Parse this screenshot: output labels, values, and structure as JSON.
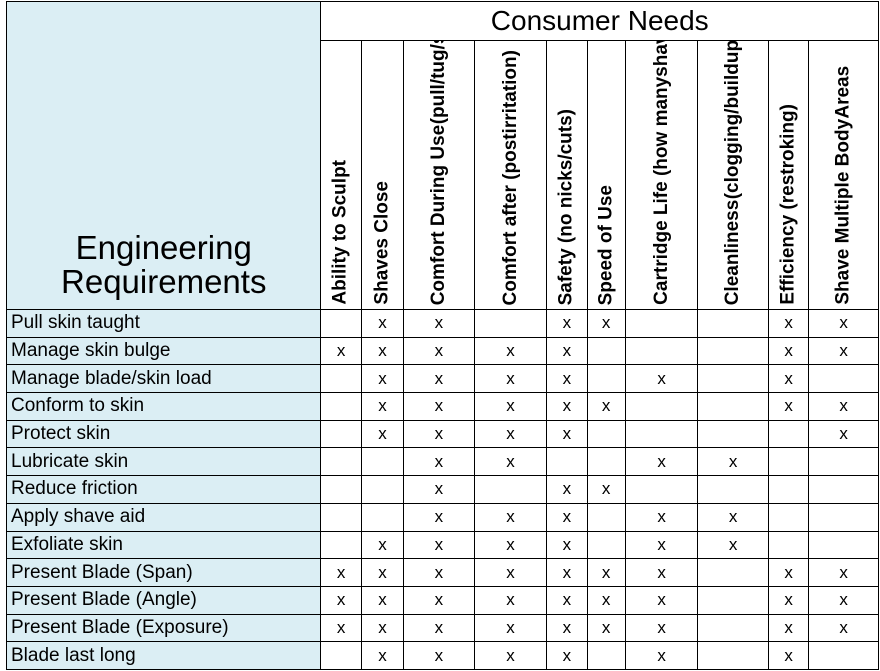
{
  "corner_title_line1": "Engineering",
  "corner_title_line2": "Requirements",
  "header_title": "Consumer Needs",
  "needs": [
    [
      "Ability to Sculpt"
    ],
    [
      "Shaves Close"
    ],
    [
      "Comfort During Use",
      "(pull/tug/scrape)"
    ],
    [
      "Comfort after (post",
      "irritation)"
    ],
    [
      "Safety (no nicks/cuts)"
    ],
    [
      "Speed of Use"
    ],
    [
      "Cartridge Life (how many",
      "shaves)"
    ],
    [
      "Cleanliness",
      "(clogging/buildup)"
    ],
    [
      "Efficiency (restroking)"
    ],
    [
      "Shave Multiple Body",
      "Areas"
    ]
  ],
  "mark_symbol": "x",
  "rows": [
    {
      "label": "Pull skin taught",
      "marks": [
        0,
        1,
        1,
        0,
        1,
        1,
        0,
        0,
        1,
        1
      ]
    },
    {
      "label": "Manage skin bulge",
      "marks": [
        1,
        1,
        1,
        1,
        1,
        0,
        0,
        0,
        1,
        1
      ]
    },
    {
      "label": "Manage blade/skin load",
      "marks": [
        0,
        1,
        1,
        1,
        1,
        0,
        1,
        0,
        1,
        0
      ]
    },
    {
      "label": "Conform to skin",
      "marks": [
        0,
        1,
        1,
        1,
        1,
        1,
        0,
        0,
        1,
        1
      ]
    },
    {
      "label": "Protect skin",
      "marks": [
        0,
        1,
        1,
        1,
        1,
        0,
        0,
        0,
        0,
        1
      ]
    },
    {
      "label": "Lubricate skin",
      "marks": [
        0,
        0,
        1,
        1,
        0,
        0,
        1,
        1,
        0,
        0
      ]
    },
    {
      "label": "Reduce friction",
      "marks": [
        0,
        0,
        1,
        0,
        1,
        1,
        0,
        0,
        0,
        0
      ]
    },
    {
      "label": "Apply shave aid",
      "marks": [
        0,
        0,
        1,
        1,
        1,
        0,
        1,
        1,
        0,
        0
      ]
    },
    {
      "label": "Exfoliate skin",
      "marks": [
        0,
        1,
        1,
        1,
        1,
        0,
        1,
        1,
        0,
        0
      ]
    },
    {
      "label": "Present Blade (Span)",
      "marks": [
        1,
        1,
        1,
        1,
        1,
        1,
        1,
        0,
        1,
        1
      ]
    },
    {
      "label": "Present Blade (Angle)",
      "marks": [
        1,
        1,
        1,
        1,
        1,
        1,
        1,
        0,
        1,
        1
      ]
    },
    {
      "label": "Present Blade (Exposure)",
      "marks": [
        1,
        1,
        1,
        1,
        1,
        1,
        1,
        0,
        1,
        1
      ]
    },
    {
      "label": "Blade last long",
      "marks": [
        0,
        1,
        1,
        1,
        1,
        0,
        1,
        0,
        1,
        0
      ]
    }
  ],
  "colors": {
    "header_fill": "#dbeef4",
    "border": "#000000"
  }
}
